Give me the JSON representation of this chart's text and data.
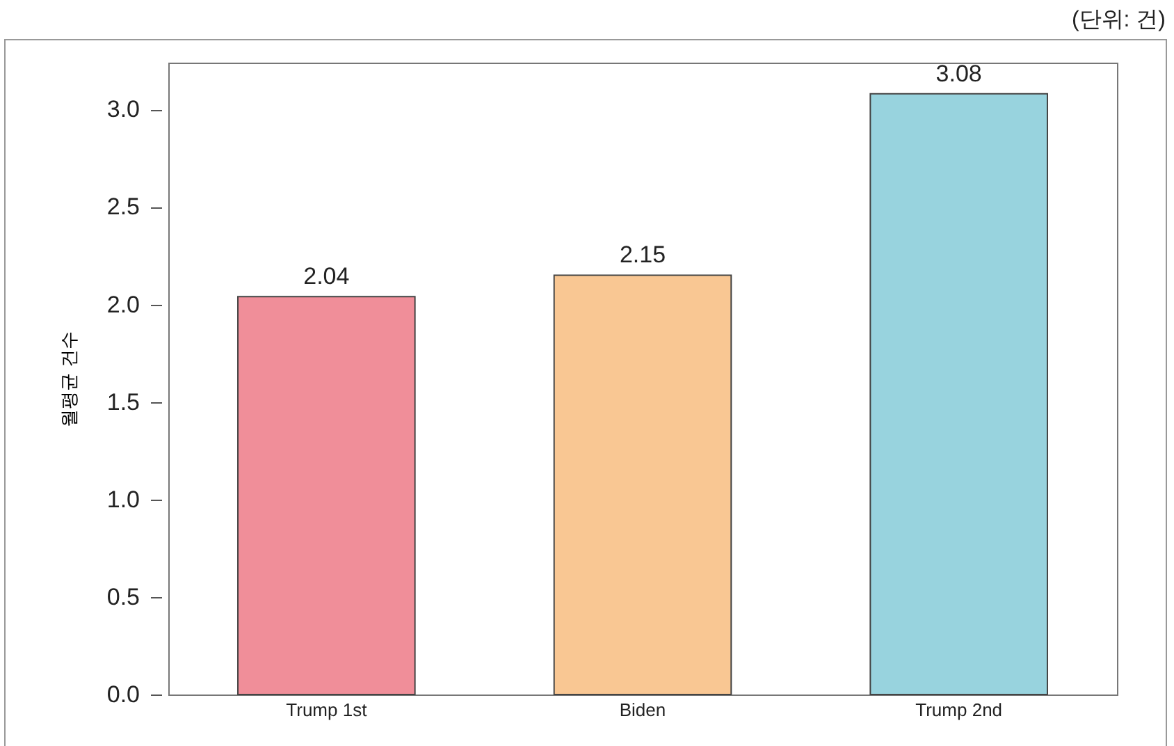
{
  "chart_data": {
    "type": "bar",
    "ylabel": "월평균 건수",
    "annotations": [
      "(단위: 건)"
    ],
    "categories": [
      "Trump 1st",
      "Biden",
      "Trump 2nd"
    ],
    "values": [
      2.04,
      2.15,
      3.08
    ],
    "colors": [
      "#f08e99",
      "#f9c793",
      "#98d3de"
    ],
    "ylim": [
      0,
      3.24
    ],
    "yticks": [
      {
        "value": 0,
        "label": "0.0"
      },
      0.5,
      {
        "value": 1,
        "label": "1.0"
      },
      1.5,
      {
        "value": 2,
        "label": "2.0"
      },
      2.5,
      {
        "value": 3,
        "label": "3.0"
      }
    ],
    "data_labels": true,
    "grid": false,
    "legend": false
  }
}
